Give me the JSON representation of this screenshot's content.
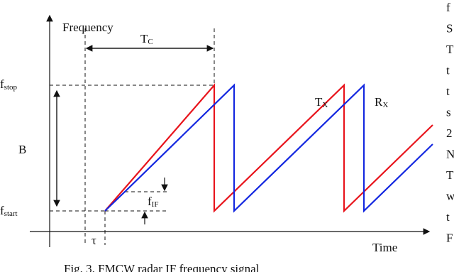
{
  "figure": {
    "y_axis_label": "Frequency",
    "x_axis_label": "Time",
    "chirp_time": {
      "base": "T",
      "sub": "C"
    },
    "f_stop": {
      "base": "f",
      "sub": "stop"
    },
    "bandwidth": "B",
    "f_start": {
      "base": "f",
      "sub": "start"
    },
    "f_if": {
      "base": "f",
      "sub": "IF"
    },
    "delay": "τ",
    "tx": {
      "base": "T",
      "sub": "X"
    },
    "rx": {
      "base": "R",
      "sub": "X"
    }
  },
  "caption": "Fig. 3. FMCW radar IF frequency signal",
  "right_column": [
    "f",
    "S",
    "T",
    "t",
    "t",
    "s",
    "2",
    "N",
    "T",
    "w",
    "t",
    "F"
  ]
}
